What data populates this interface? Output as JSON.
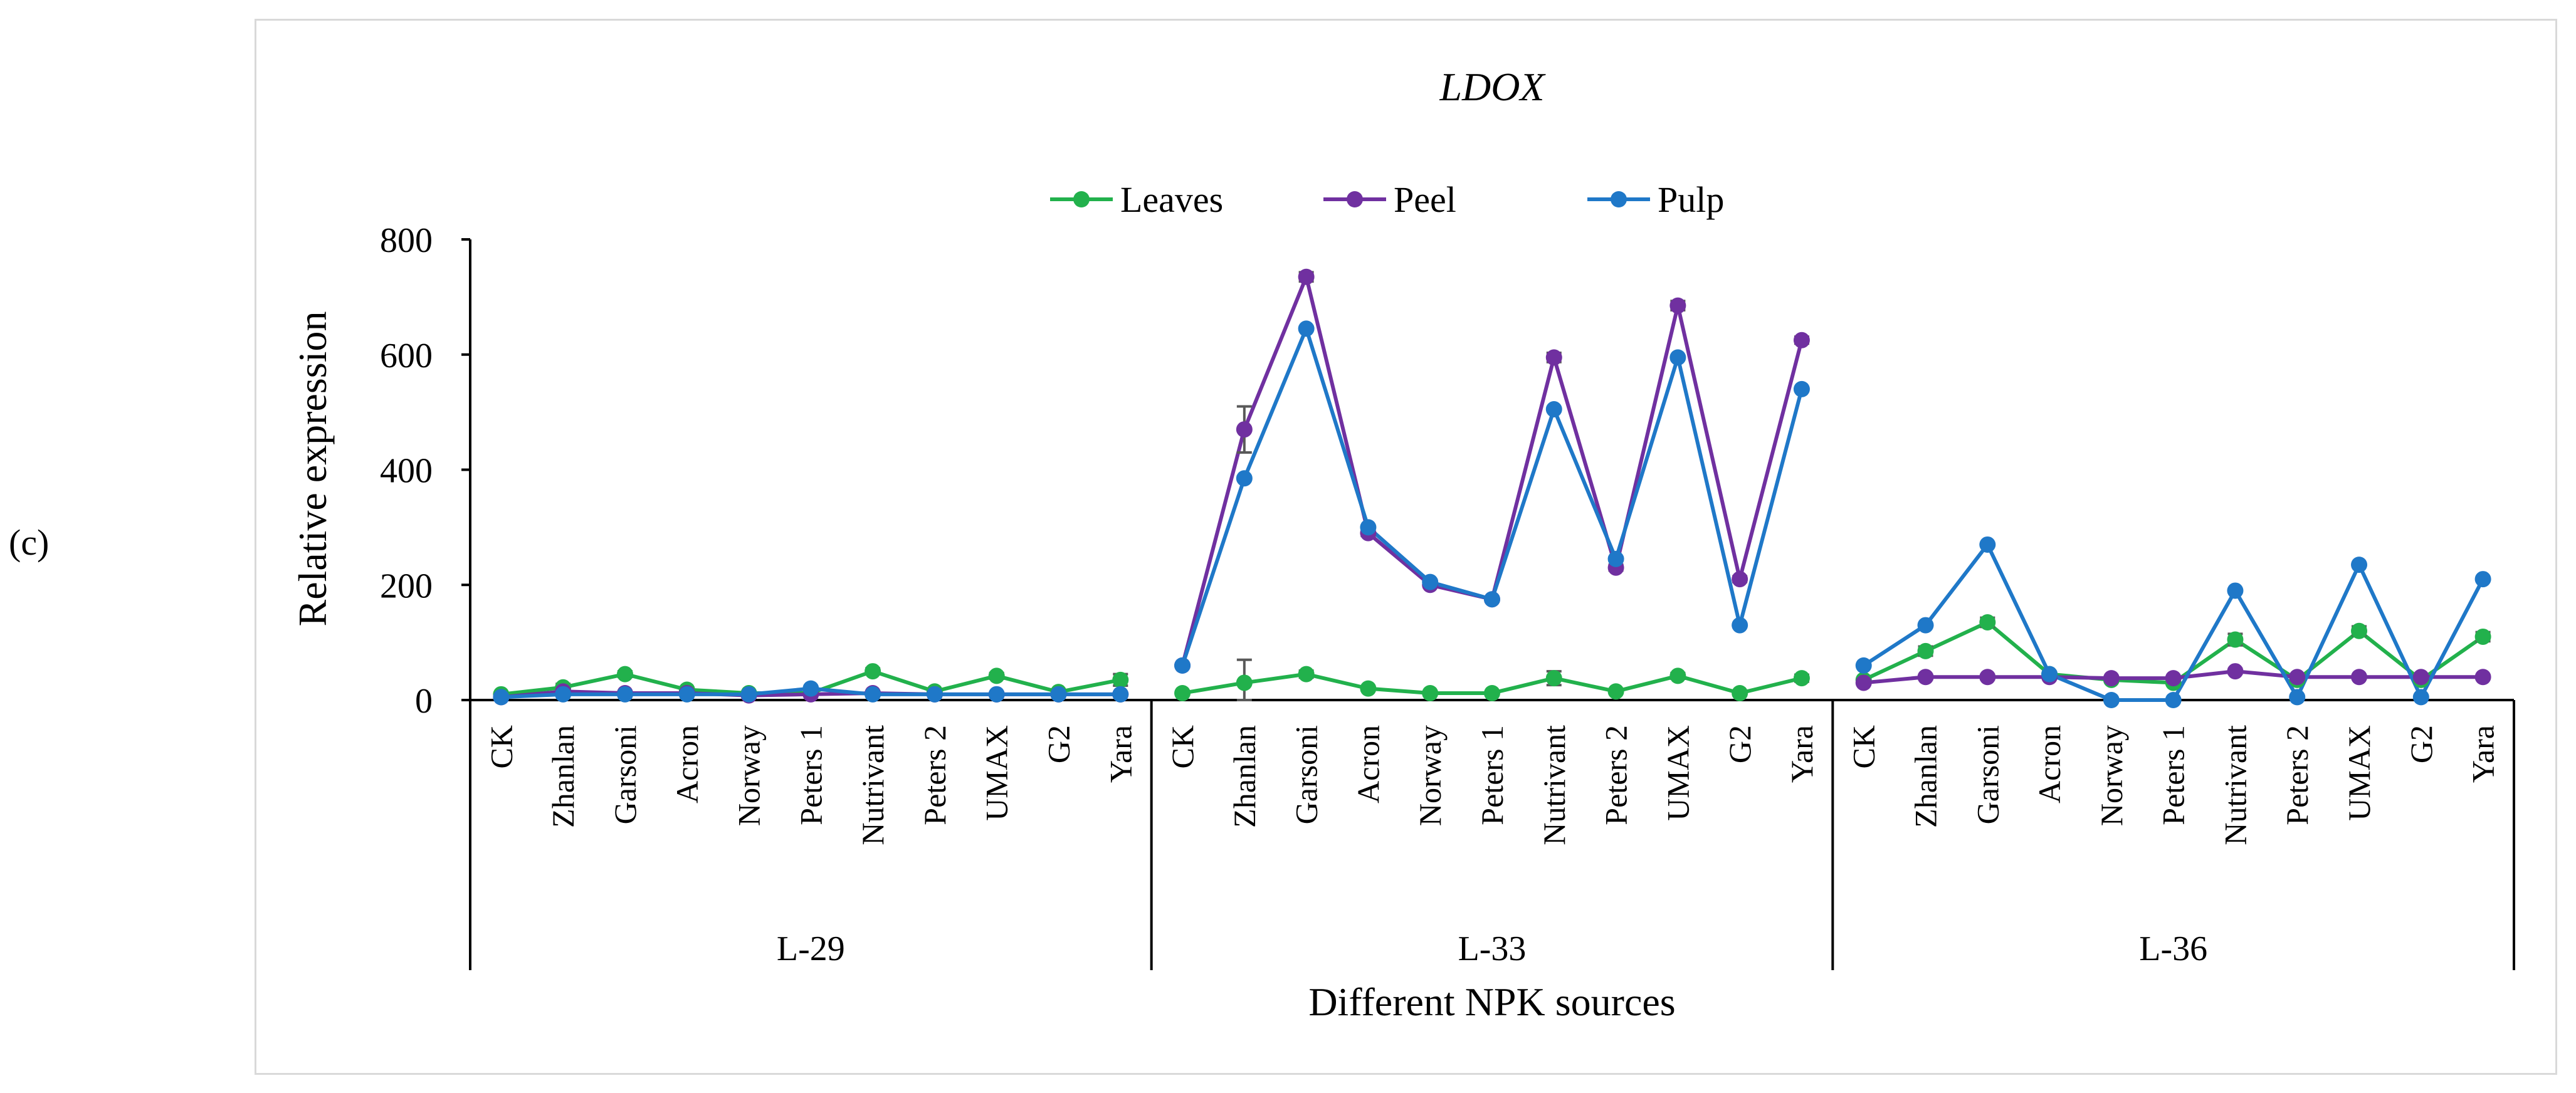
{
  "panel_label": "(c)",
  "chart_data": {
    "type": "line",
    "title": "LDOX",
    "xlabel": "Different NPK sources",
    "ylabel": "Relative expression",
    "ylim": [
      0,
      800
    ],
    "yticks": [
      0,
      200,
      400,
      600,
      800
    ],
    "legend_position": "top-center",
    "groups": [
      "L-29",
      "L-33",
      "L-36"
    ],
    "categories": [
      "CK",
      "Zhanlan",
      "Garsoni",
      "Acron",
      "Norway",
      "Peters 1",
      "Nutrivant",
      "Peters 2",
      "UMAX",
      "G2",
      "Yara"
    ],
    "colors": {
      "Leaves": "#22b14c",
      "Peel": "#7030a0",
      "Pulp": "#1f78c8",
      "axis": "#000000",
      "errorbar": "#595959",
      "frame": "#d9d9d9"
    },
    "series": [
      {
        "name": "Leaves",
        "values": [
          [
            10,
            22,
            45,
            18,
            12,
            12,
            50,
            15,
            42,
            14,
            35
          ],
          [
            12,
            30,
            45,
            20,
            12,
            12,
            38,
            15,
            42,
            12,
            38
          ],
          [
            35,
            85,
            135,
            45,
            35,
            30,
            105,
            35,
            120,
            35,
            110
          ]
        ],
        "errors": [
          [
            3,
            6,
            5,
            3,
            2,
            2,
            5,
            2,
            5,
            2,
            10
          ],
          [
            2,
            40,
            6,
            3,
            2,
            2,
            12,
            3,
            5,
            2,
            6
          ],
          [
            3,
            8,
            8,
            3,
            3,
            3,
            10,
            3,
            8,
            3,
            8
          ]
        ]
      },
      {
        "name": "Peel",
        "values": [
          [
            5,
            15,
            12,
            12,
            8,
            10,
            12,
            10,
            10,
            10,
            10
          ],
          [
            60,
            470,
            735,
            290,
            200,
            175,
            595,
            230,
            685,
            210,
            625
          ],
          [
            30,
            40,
            40,
            40,
            38,
            38,
            50,
            40,
            40,
            40,
            40
          ]
        ],
        "errors": [
          [
            2,
            3,
            2,
            2,
            2,
            2,
            2,
            2,
            2,
            2,
            2
          ],
          [
            3,
            40,
            8,
            5,
            4,
            4,
            8,
            5,
            8,
            5,
            6
          ],
          [
            3,
            4,
            4,
            3,
            3,
            3,
            4,
            3,
            3,
            3,
            3
          ]
        ]
      },
      {
        "name": "Pulp",
        "values": [
          [
            5,
            10,
            10,
            10,
            10,
            20,
            10,
            10,
            10,
            10,
            10
          ],
          [
            60,
            385,
            645,
            300,
            205,
            175,
            505,
            245,
            595,
            130,
            540
          ],
          [
            60,
            130,
            270,
            45,
            0,
            0,
            190,
            5,
            235,
            5,
            210
          ]
        ],
        "errors": [
          [
            1,
            1,
            1,
            1,
            1,
            1,
            1,
            1,
            1,
            1,
            1
          ],
          [
            2,
            3,
            3,
            3,
            3,
            3,
            3,
            3,
            3,
            3,
            3
          ],
          [
            2,
            2,
            2,
            2,
            0,
            0,
            2,
            2,
            2,
            2,
            2
          ]
        ]
      }
    ]
  }
}
